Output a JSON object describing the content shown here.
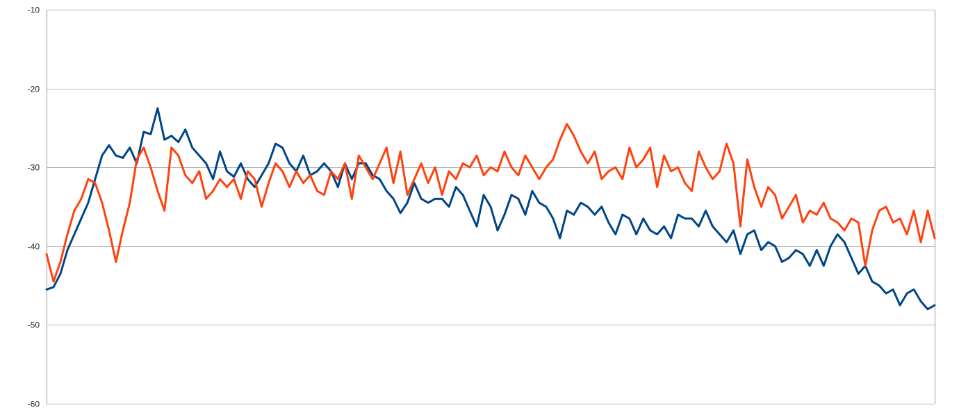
{
  "chart_data": {
    "type": "line",
    "title": "",
    "xlabel": "",
    "ylabel": "",
    "ylim": [
      -60,
      -10
    ],
    "y_ticks": [
      "-10",
      "-20",
      "-30",
      "-40",
      "-50",
      "-60"
    ],
    "x_tick_labels": false,
    "grid": "horizontal",
    "legend": "none",
    "x": [
      0,
      1,
      2,
      3,
      4,
      5,
      6,
      7,
      8,
      9,
      10,
      11,
      12,
      13,
      14,
      15,
      16,
      17,
      18,
      19,
      20,
      21,
      22,
      23,
      24,
      25,
      26,
      27,
      28,
      29,
      30,
      31,
      32,
      33,
      34,
      35,
      36,
      37,
      38,
      39,
      40,
      41,
      42,
      43,
      44,
      45,
      46,
      47,
      48,
      49,
      50,
      51,
      52,
      53,
      54,
      55,
      56,
      57,
      58,
      59,
      60,
      61,
      62,
      63,
      64,
      65,
      66,
      67,
      68,
      69,
      70,
      71,
      72,
      73,
      74,
      75,
      76,
      77,
      78,
      79,
      80,
      81,
      82,
      83,
      84,
      85,
      86,
      87,
      88,
      89,
      90,
      91,
      92,
      93,
      94,
      95,
      96,
      97,
      98,
      99,
      100,
      101,
      102,
      103,
      104,
      105,
      106,
      107,
      108,
      109,
      110,
      111,
      112,
      113,
      114,
      115,
      116,
      117,
      118,
      119,
      120,
      121,
      122,
      123,
      124,
      125,
      126,
      127,
      128
    ],
    "series": [
      {
        "color": "#004586",
        "values": [
          -45.5,
          -45.2,
          -43.5,
          -40.5,
          -38.5,
          -36.5,
          -34.5,
          -31.5,
          -28.5,
          -27.2,
          -28.5,
          -28.8,
          -27.5,
          -29.5,
          -25.5,
          -25.8,
          -22.5,
          -26.5,
          -26,
          -26.8,
          -25.2,
          -27.5,
          -28.5,
          -29.5,
          -31.5,
          -28,
          -30.5,
          -31.2,
          -29.5,
          -31.5,
          -32.5,
          -31,
          -29.5,
          -27,
          -27.5,
          -29.5,
          -30.5,
          -28.5,
          -31,
          -30.5,
          -29.5,
          -30.5,
          -32.5,
          -29.5,
          -31.5,
          -29.5,
          -29.5,
          -31,
          -31.5,
          -33,
          -34,
          -35.8,
          -34.5,
          -32,
          -34,
          -34.5,
          -34,
          -34,
          -35,
          -32.5,
          -33.5,
          -35.5,
          -37.5,
          -33.5,
          -35,
          -38,
          -36,
          -33.5,
          -34,
          -36,
          -33,
          -34.5,
          -35,
          -36.5,
          -39,
          -35.5,
          -36,
          -34.5,
          -35,
          -36,
          -35,
          -37,
          -38.5,
          -36,
          -36.5,
          -38.5,
          -36.5,
          -38,
          -38.5,
          -37.5,
          -39,
          -36,
          -36.5,
          -36.5,
          -37.5,
          -35.5,
          -37.5,
          -38.5,
          -39.5,
          -38,
          -41,
          -38.5,
          -38,
          -40.5,
          -39.5,
          -40,
          -42,
          -41.5,
          -40.5,
          -41,
          -42.5,
          -40.5,
          -42.5,
          -40,
          -38.5,
          -39.5,
          -41.5,
          -43.5,
          -42.5,
          -44.5,
          -45,
          -46,
          -45.5,
          -47.5,
          -46,
          -45.5,
          -47,
          -48,
          -47.5
        ]
      },
      {
        "color": "#ff420e",
        "values": [
          -41,
          -44.5,
          -42,
          -38.5,
          -35.5,
          -34,
          -31.5,
          -32,
          -34.5,
          -38,
          -42,
          -38,
          -34.5,
          -29,
          -27.5,
          -30,
          -33,
          -35.5,
          -27.5,
          -28.5,
          -31,
          -32,
          -30.5,
          -34,
          -33,
          -31.5,
          -32.5,
          -31.5,
          -34,
          -30.5,
          -31.5,
          -35,
          -32,
          -29.5,
          -30.5,
          -32.5,
          -30.5,
          -32,
          -31,
          -33,
          -33.5,
          -30.5,
          -31.5,
          -29.5,
          -34,
          -28.5,
          -30,
          -31.5,
          -29.5,
          -27.5,
          -32,
          -28,
          -33.5,
          -31.5,
          -29.5,
          -32,
          -30,
          -33.5,
          -30.5,
          -31.5,
          -29.5,
          -30,
          -28.5,
          -31,
          -30,
          -30.5,
          -28,
          -30,
          -31,
          -28.5,
          -30,
          -31.5,
          -30,
          -29,
          -26.5,
          -24.5,
          -26,
          -28,
          -29.5,
          -28,
          -31.5,
          -30.5,
          -30,
          -31.5,
          -27.5,
          -30,
          -29,
          -27.5,
          -32.5,
          -28.5,
          -30.5,
          -30,
          -32,
          -33,
          -28,
          -30,
          -31.5,
          -30.5,
          -27,
          -29.5,
          -37.5,
          -29,
          -32.5,
          -35,
          -32.5,
          -33.5,
          -36.5,
          -35,
          -33.5,
          -37,
          -35.5,
          -36,
          -34.5,
          -36.5,
          -37,
          -38,
          -36.5,
          -37,
          -42.5,
          -38,
          -35.5,
          -35,
          -37,
          -36.5,
          -38.5,
          -35.5,
          -39.5,
          -35.5,
          -39
        ]
      }
    ]
  }
}
